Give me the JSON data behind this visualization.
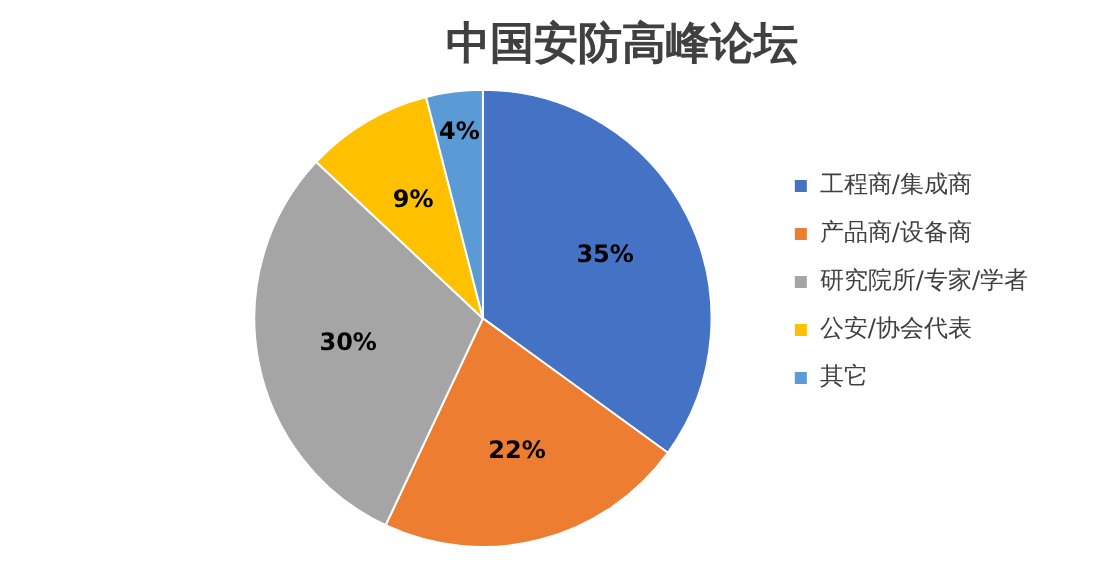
{
  "chart_data": {
    "type": "pie",
    "title": "中国安防高峰论坛",
    "categories": [
      "工程商/集成商",
      "产品商/设备商",
      "研究院所/专家/学者",
      "公安/协会代表",
      "其它"
    ],
    "values": [
      35,
      22,
      30,
      9,
      4
    ],
    "colors": [
      "#4472c4",
      "#ed7d31",
      "#a5a5a5",
      "#ffc000",
      "#5b9bd5"
    ],
    "value_labels": [
      "35%",
      "22%",
      "30%",
      "9%",
      "4%"
    ],
    "legend": "right"
  }
}
